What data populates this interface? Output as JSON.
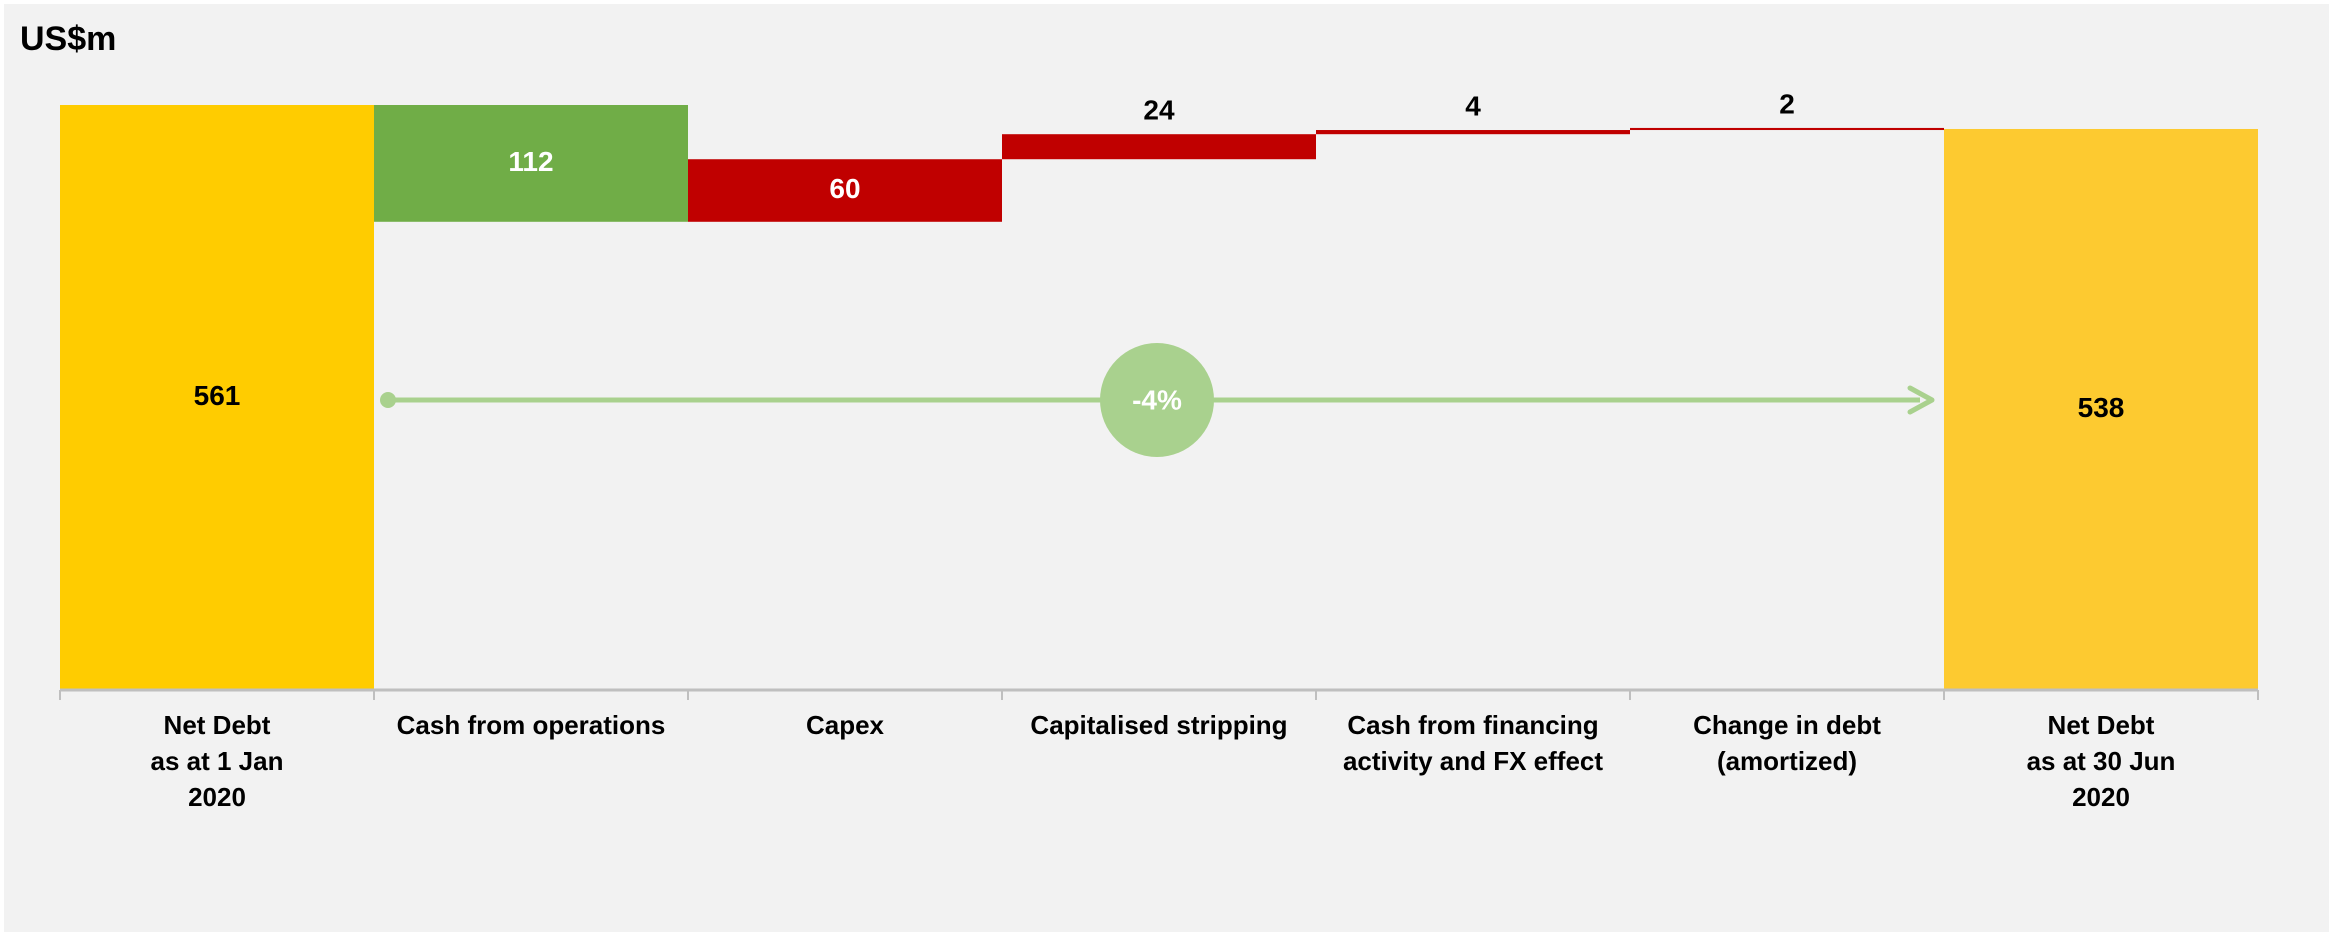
{
  "chart_data": {
    "type": "bar",
    "subtype": "waterfall",
    "unit_label": "US$m",
    "categories": [
      "Net Debt\nas at 1 Jan\n2020",
      "Cash from operations",
      "Capex",
      "Capitalised stripping",
      "Cash from financing\nactivity and FX effect",
      "Change in debt\n(amortized)",
      "Net Debt\nas at 30 Jun\n2020"
    ],
    "steps": [
      {
        "value": 561,
        "label": "561",
        "kind": "total"
      },
      {
        "value": -112,
        "label": "112",
        "kind": "decrease"
      },
      {
        "value": 60,
        "label": "60",
        "kind": "increase"
      },
      {
        "value": 24,
        "label": "24",
        "kind": "increase"
      },
      {
        "value": 4,
        "label": "4",
        "kind": "increase"
      },
      {
        "value": 2,
        "label": "2",
        "kind": "increase"
      },
      {
        "value": 538,
        "label": "538",
        "kind": "total"
      }
    ],
    "ylim": [
      0,
      561
    ],
    "grid": false,
    "annotation": {
      "text": "-4%",
      "from": "Net Debt as at 1 Jan 2020",
      "to": "Net Debt as at 30 Jun 2020"
    },
    "colors": {
      "total_start": "#ffcc00",
      "total_end": "#fdca30",
      "decrease": "#70ad47",
      "increase": "#c00000",
      "arrow": "#a9d18e",
      "background": "#f2f2f2",
      "axis": "#bfbfbf"
    }
  }
}
